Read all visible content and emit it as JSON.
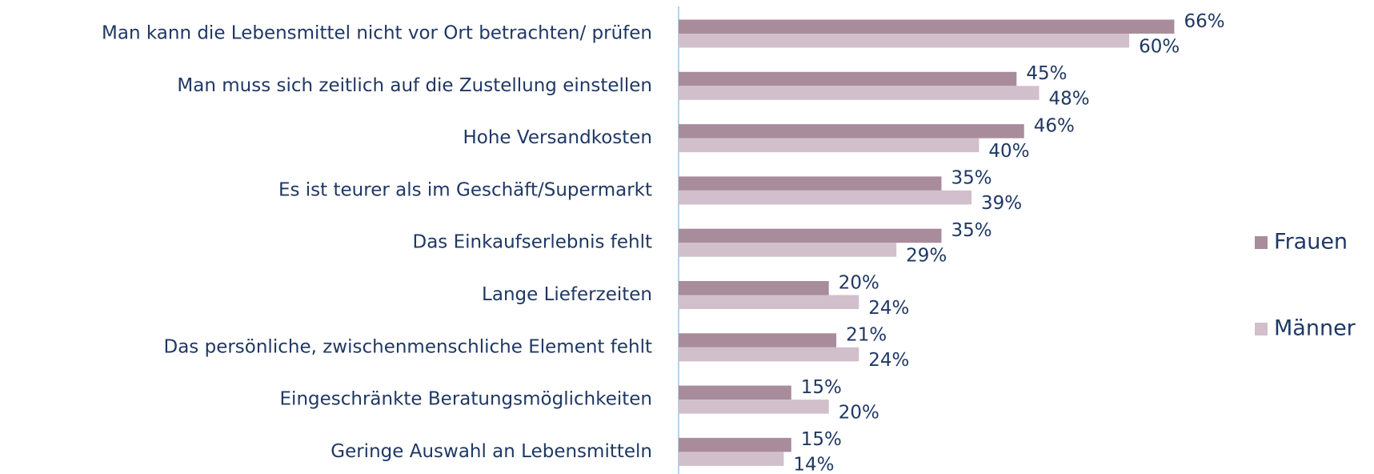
{
  "chart_data": {
    "type": "bar",
    "orientation": "horizontal",
    "categories": [
      "Man kann die Lebensmittel nicht vor Ort betrachten/ prüfen",
      "Man muss sich zeitlich auf die Zustellung einstellen",
      "Hohe Versandkosten",
      "Es ist teurer als im Geschäft/Supermarkt",
      "Das Einkaufserlebnis fehlt",
      "Lange Lieferzeiten",
      "Das persönliche, zwischenmenschliche Element fehlt",
      "Eingeschränkte Beratungsmöglichkeiten",
      "Geringe Auswahl an Lebensmitteln"
    ],
    "series": [
      {
        "name": "Frauen",
        "color": "#a88c9c",
        "values": [
          66,
          45,
          46,
          35,
          35,
          20,
          21,
          15,
          15
        ],
        "value_labels": [
          "66%",
          "45%",
          "46%",
          "35%",
          "35%",
          "20%",
          "21%",
          "15%",
          "15%"
        ]
      },
      {
        "name": "Männer",
        "color": "#d1bfcc",
        "values": [
          60,
          48,
          40,
          39,
          29,
          24,
          24,
          20,
          14
        ],
        "value_labels": [
          "60%",
          "48%",
          "40%",
          "39%",
          "29%",
          "24%",
          "24%",
          "20%",
          "14%"
        ]
      }
    ],
    "xlim": [
      0,
      70
    ],
    "legend": "right"
  }
}
